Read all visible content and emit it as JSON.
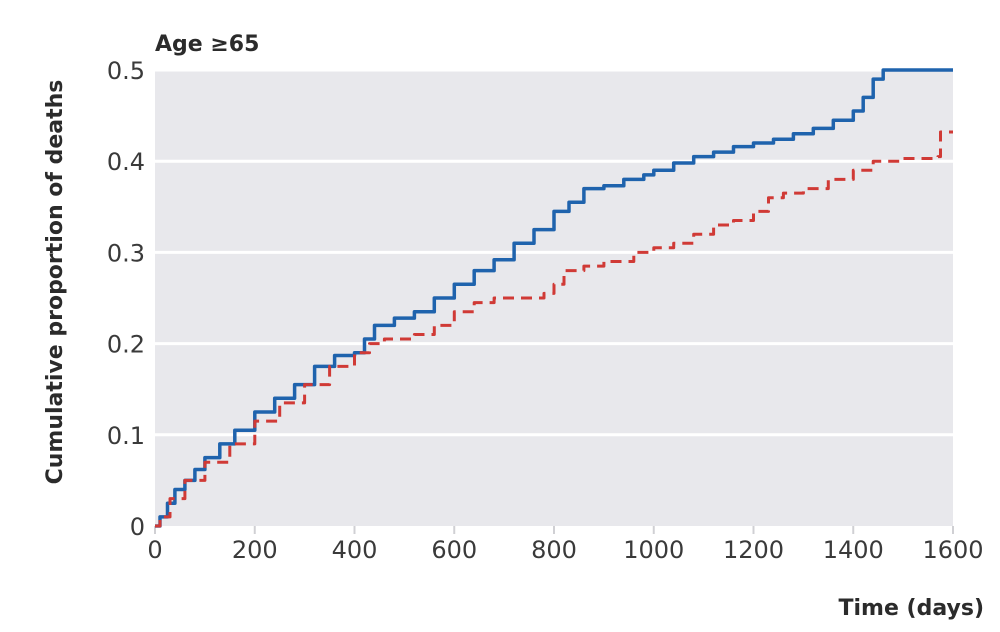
{
  "chart_data": {
    "type": "line",
    "title": "Age ≥65",
    "xlabel": "Time (days)",
    "ylabel": "Cumulative proportion of deaths",
    "xlim": [
      0,
      1600
    ],
    "ylim": [
      0,
      0.5
    ],
    "xticks": [
      0,
      200,
      400,
      600,
      800,
      1000,
      1200,
      1400,
      1600
    ],
    "yticks": [
      0,
      0.1,
      0.2,
      0.3,
      0.4,
      0.5
    ],
    "xtick_labels": [
      "0",
      "200",
      "400",
      "600",
      "800",
      "1000",
      "1200",
      "1400",
      "1600"
    ],
    "ytick_labels": [
      "0",
      "0.1",
      "0.2",
      "0.3",
      "0.4",
      "0.5"
    ],
    "grid": true,
    "plot_background": "#e8e8ec",
    "series": [
      {
        "color": "#1f63ad",
        "style": "solid",
        "x": [
          0,
          10,
          25,
          40,
          60,
          80,
          100,
          130,
          160,
          200,
          240,
          280,
          320,
          360,
          400,
          420,
          440,
          480,
          520,
          560,
          600,
          640,
          680,
          720,
          760,
          800,
          830,
          860,
          900,
          940,
          980,
          1000,
          1040,
          1080,
          1120,
          1160,
          1200,
          1240,
          1280,
          1320,
          1360,
          1400,
          1420,
          1440,
          1460,
          1520,
          1600
        ],
        "y": [
          0,
          0.01,
          0.025,
          0.04,
          0.05,
          0.062,
          0.075,
          0.09,
          0.105,
          0.125,
          0.14,
          0.155,
          0.175,
          0.187,
          0.19,
          0.205,
          0.22,
          0.228,
          0.235,
          0.25,
          0.265,
          0.28,
          0.292,
          0.31,
          0.325,
          0.345,
          0.355,
          0.37,
          0.373,
          0.38,
          0.385,
          0.39,
          0.398,
          0.405,
          0.41,
          0.416,
          0.42,
          0.424,
          0.43,
          0.436,
          0.445,
          0.455,
          0.47,
          0.49,
          0.5,
          0.5,
          0.5
        ]
      },
      {
        "color": "#d03a36",
        "style": "dashed",
        "x": [
          0,
          10,
          30,
          60,
          100,
          150,
          200,
          250,
          300,
          350,
          400,
          430,
          460,
          520,
          560,
          600,
          640,
          680,
          720,
          780,
          800,
          820,
          860,
          900,
          960,
          1000,
          1040,
          1080,
          1120,
          1160,
          1200,
          1230,
          1260,
          1300,
          1350,
          1400,
          1440,
          1500,
          1570,
          1575,
          1600
        ],
        "y": [
          0,
          0.01,
          0.03,
          0.05,
          0.07,
          0.09,
          0.115,
          0.135,
          0.155,
          0.175,
          0.19,
          0.2,
          0.205,
          0.21,
          0.22,
          0.235,
          0.245,
          0.25,
          0.25,
          0.255,
          0.265,
          0.28,
          0.285,
          0.29,
          0.3,
          0.305,
          0.31,
          0.32,
          0.33,
          0.335,
          0.345,
          0.36,
          0.365,
          0.37,
          0.38,
          0.39,
          0.4,
          0.403,
          0.405,
          0.432,
          0.432
        ]
      }
    ]
  }
}
